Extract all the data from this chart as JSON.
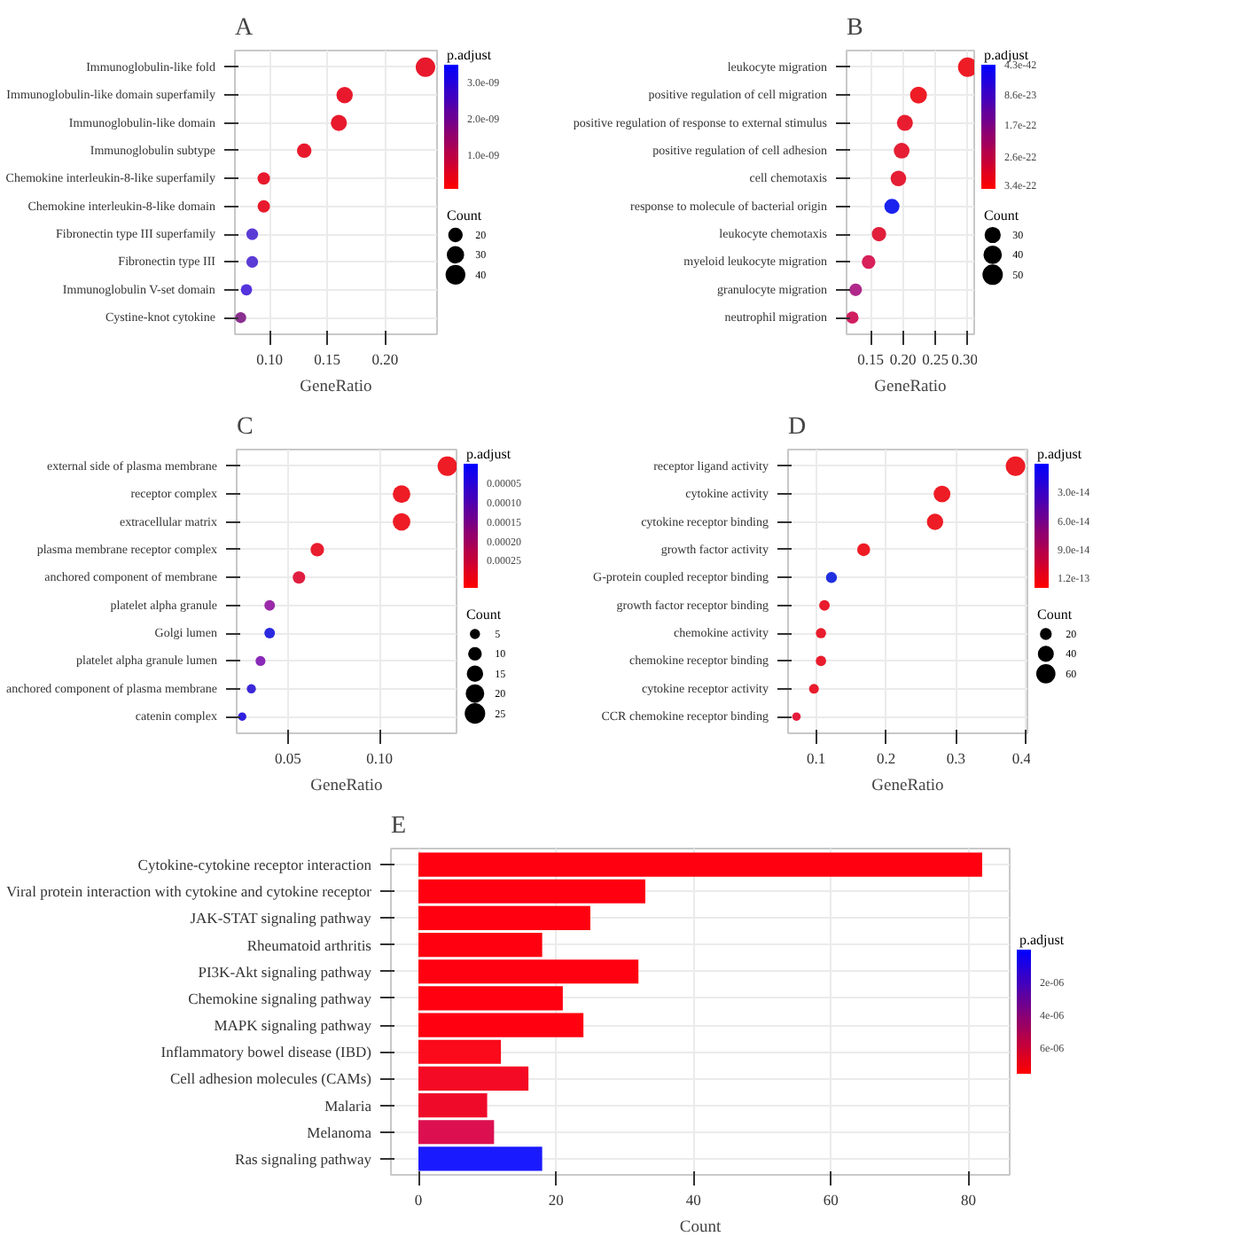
{
  "chart_data": [
    {
      "type": "bubble",
      "title": "A",
      "xlabel": "GeneRatio",
      "orientation": "horizontal",
      "grid": true,
      "legend_title": "Count",
      "clabel": "p.adjust",
      "marker": "circle",
      "categories": [
        "Immunoglobulin-like fold",
        "Immunoglobulin-like domain superfamily",
        "Immunoglobulin-like domain",
        "Immunoglobulin subtype",
        "Chemokine interleukin-8-like superfamily",
        "Chemokine interleukin-8-like domain",
        "Fibronectin type III superfamily",
        "Fibronectin type III",
        "Immunoglobulin V-set domain",
        "Cystine-knot cytokine"
      ],
      "values": [
        0.235,
        0.165,
        0.16,
        0.13,
        0.095,
        0.095,
        0.085,
        0.085,
        0.08,
        0.075
      ],
      "sizes": [
        47,
        33,
        32,
        26,
        19,
        19,
        17,
        17,
        16,
        15
      ],
      "colors": [
        "#e8192c",
        "#e8192c",
        "#e8192c",
        "#e8192c",
        "#e8192c",
        "#e8192c",
        "#5b3bd6",
        "#5b3bd6",
        "#5533dd",
        "#8a3090"
      ],
      "size_legend": [
        20,
        30,
        40
      ],
      "xlim": [
        0.07,
        0.245
      ],
      "xticks": [
        {
          "value": 0.1,
          "label": "0.10"
        },
        {
          "value": 0.15,
          "label": "0.15"
        },
        {
          "value": 0.2,
          "label": "0.20"
        }
      ],
      "clim": [
        6e-11,
        3.5e-09
      ],
      "cticks": [
        {
          "value": 1e-09,
          "label": "1.0e-09"
        },
        {
          "value": 2e-09,
          "label": "2.0e-09"
        },
        {
          "value": 3e-09,
          "label": "3.0e-09"
        }
      ]
    },
    {
      "type": "bubble",
      "title": "B",
      "xlabel": "GeneRatio",
      "orientation": "horizontal",
      "grid": true,
      "legend_title": "Count",
      "clabel": "p.adjust",
      "marker": "circle",
      "categories": [
        "leukocyte migration",
        "positive regulation of cell migration",
        "positive regulation of response to external stimulus",
        "positive regulation of cell adhesion",
        "cell chemotaxis",
        "response to molecule of bacterial origin",
        "leukocyte chemotaxis",
        "myeloid leukocyte migration",
        "granulocyte migration",
        "neutrophil migration"
      ],
      "values": [
        0.3,
        0.224,
        0.203,
        0.198,
        0.193,
        0.183,
        0.163,
        0.147,
        0.127,
        0.122
      ],
      "sizes": [
        55,
        41,
        37,
        36,
        35,
        33,
        30,
        27,
        23,
        22
      ],
      "colors": [
        "#ee1c25",
        "#ee1c25",
        "#e81d30",
        "#e51e35",
        "#e51e35",
        "#1a22ee",
        "#e01e3a",
        "#d8205a",
        "#b0288a",
        "#d01e60"
      ],
      "size_legend": [
        30,
        40,
        50
      ],
      "xlim": [
        0.113,
        0.31
      ],
      "xticks": [
        {
          "value": 0.15,
          "label": "0.15"
        },
        {
          "value": 0.2,
          "label": "0.20"
        },
        {
          "value": 0.25,
          "label": "0.25"
        },
        {
          "value": 0.3,
          "label": "0.30"
        }
      ],
      "clim": [
        3.5e-22,
        0
      ],
      "cticks": [
        {
          "value": 4.3e-42,
          "label": "4.3e-42"
        },
        {
          "value": 8.6e-23,
          "label": "8.6e-23"
        },
        {
          "value": 1.7e-22,
          "label": "1.7e-22"
        },
        {
          "value": 2.6e-22,
          "label": "2.6e-22"
        },
        {
          "value": 3.4e-22,
          "label": "3.4e-22"
        }
      ]
    },
    {
      "type": "bubble",
      "title": "C",
      "xlabel": "GeneRatio",
      "orientation": "horizontal",
      "grid": true,
      "legend_title": "Count",
      "clabel": "p.adjust",
      "marker": "circle",
      "categories": [
        "external side of plasma membrane",
        "receptor complex",
        "extracellular matrix",
        "plasma membrane receptor complex",
        "anchored component of membrane",
        "platelet alpha granule",
        "Golgi lumen",
        "platelet alpha granule lumen",
        "anchored component of plasma membrane",
        "catenin complex"
      ],
      "values": [
        0.137,
        0.112,
        0.112,
        0.066,
        0.056,
        0.04,
        0.04,
        0.035,
        0.03,
        0.025
      ],
      "sizes": [
        27,
        22,
        22,
        13,
        11,
        8,
        8,
        7,
        6,
        5
      ],
      "colors": [
        "#ee1c25",
        "#ee1c25",
        "#ee1c25",
        "#e81d2e",
        "#e01d40",
        "#9a2aa8",
        "#2a2ae0",
        "#8a2ab8",
        "#3a28d8",
        "#3020e0"
      ],
      "size_legend": [
        5,
        10,
        15,
        20,
        25
      ],
      "xlim": [
        0.022,
        0.142
      ],
      "xticks": [
        {
          "value": 0.05,
          "label": "0.05"
        },
        {
          "value": 0.1,
          "label": "0.10"
        }
      ],
      "clim": [
        0.00032,
        0
      ],
      "cticks": [
        {
          "value": 5e-05,
          "label": "0.00005"
        },
        {
          "value": 0.0001,
          "label": "0.00010"
        },
        {
          "value": 0.00015,
          "label": "0.00015"
        },
        {
          "value": 0.0002,
          "label": "0.00020"
        },
        {
          "value": 0.00025,
          "label": "0.00025"
        }
      ]
    },
    {
      "type": "bubble",
      "title": "D",
      "xlabel": "GeneRatio",
      "orientation": "horizontal",
      "grid": true,
      "legend_title": "Count",
      "clabel": "p.adjust",
      "marker": "circle",
      "categories": [
        "receptor ligand activity",
        "cytokine activity",
        "cytokine receptor binding",
        "growth factor activity",
        "G-protein coupled receptor binding",
        "growth factor receptor binding",
        "chemokine activity",
        "chemokine receptor binding",
        "cytokine receptor activity",
        "CCR chemokine receptor binding"
      ],
      "values": [
        0.385,
        0.28,
        0.27,
        0.168,
        0.122,
        0.112,
        0.107,
        0.107,
        0.097,
        0.072
      ],
      "sizes": [
        75,
        55,
        53,
        33,
        24,
        22,
        21,
        21,
        19,
        14
      ],
      "colors": [
        "#ee1c25",
        "#ee1c25",
        "#ee1c25",
        "#ee1c25",
        "#2030e0",
        "#e81c2c",
        "#e81c2c",
        "#e81c2c",
        "#e81c2c",
        "#e41c3c"
      ],
      "size_legend": [
        20,
        40,
        60
      ],
      "xlim": [
        0.06,
        0.402
      ],
      "xticks": [
        0.1,
        0.2,
        0.3,
        0.4
      ],
      "clim": [
        1.3e-13,
        0
      ],
      "cticks": [
        {
          "value": 3e-14,
          "label": "3.0e-14"
        },
        {
          "value": 6e-14,
          "label": "6.0e-14"
        },
        {
          "value": 9e-14,
          "label": "9.0e-14"
        },
        {
          "value": 1.2e-13,
          "label": "1.2e-13"
        }
      ]
    },
    {
      "type": "bar",
      "title": "E",
      "xlabel": "Count",
      "orientation": "horizontal",
      "grid": true,
      "clabel": "p.adjust",
      "categories": [
        "Cytokine-cytokine receptor interaction",
        "Viral protein interaction with cytokine and cytokine receptor",
        "JAK-STAT signaling pathway",
        "Rheumatoid arthritis",
        "PI3K-Akt signaling pathway",
        "Chemokine signaling pathway",
        "MAPK signaling pathway",
        "Inflammatory bowel disease (IBD)",
        "Cell adhesion molecules (CAMs)",
        "Malaria",
        "Melanoma",
        "Ras signaling pathway"
      ],
      "values": [
        82,
        33,
        25,
        18,
        32,
        21,
        24,
        12,
        16,
        10,
        11,
        18
      ],
      "colors": [
        "#fe0010",
        "#fe0010",
        "#fe0010",
        "#fe0010",
        "#fe0010",
        "#fe0010",
        "#fe0010",
        "#fa0a1a",
        "#f40a24",
        "#f00a2a",
        "#dc1050",
        "#1a1aff"
      ],
      "xlim": [
        -4,
        86
      ],
      "xticks": [
        0,
        20,
        40,
        60,
        80
      ],
      "clim": [
        7.6e-06,
        0
      ],
      "cticks": [
        {
          "value": 2e-06,
          "label": "2e-06"
        },
        {
          "value": 4e-06,
          "label": "4e-06"
        },
        {
          "value": 6e-06,
          "label": "6e-06"
        }
      ]
    }
  ]
}
